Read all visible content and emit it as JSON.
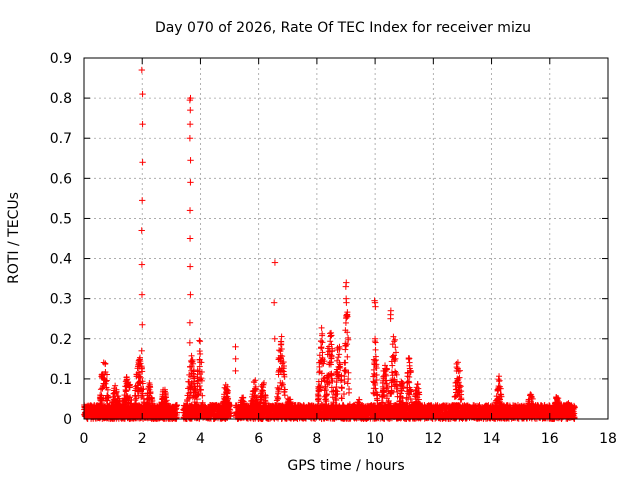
{
  "chart_data": {
    "type": "scatter",
    "title": "Day 070 of 2026, Rate Of TEC Index for receiver mizu",
    "xlabel": "GPS time / hours",
    "ylabel": "ROTI / TECUs",
    "xlim": [
      0,
      18
    ],
    "ylim": [
      0,
      0.9
    ],
    "xticks": [
      "0",
      "2",
      "4",
      "6",
      "8",
      "10",
      "12",
      "14",
      "16",
      "18"
    ],
    "yticks": [
      "0",
      "0.1",
      "0.2",
      "0.3",
      "0.4",
      "0.5",
      "0.6",
      "0.7",
      "0.8",
      "0.9"
    ],
    "grid": true,
    "marker": "+",
    "color": "#ff0000",
    "series": [
      {
        "name": "ROTI",
        "spikes": [
          {
            "x": 2.0,
            "values": [
              0.87,
              0.81,
              0.735,
              0.64,
              0.545,
              0.47,
              0.385,
              0.31,
              0.235,
              0.17
            ]
          },
          {
            "x": 3.65,
            "values": [
              0.8,
              0.795,
              0.77,
              0.735,
              0.7,
              0.645,
              0.59,
              0.52,
              0.45,
              0.38,
              0.31,
              0.24,
              0.19
            ]
          },
          {
            "x": 5.2,
            "values": [
              0.18,
              0.15,
              0.12
            ]
          },
          {
            "x": 6.55,
            "values": [
              0.39,
              0.29,
              0.2
            ]
          },
          {
            "x": 9.0,
            "values": [
              0.34,
              0.33,
              0.3,
              0.29
            ]
          },
          {
            "x": 10.0,
            "values": [
              0.295,
              0.29,
              0.28,
              0.2
            ]
          },
          {
            "x": 10.55,
            "values": [
              0.27,
              0.26,
              0.25
            ]
          }
        ],
        "clusters": [
          {
            "x_start": 0.5,
            "x_end": 0.9,
            "peak": 0.15
          },
          {
            "x_start": 0.9,
            "x_end": 1.3,
            "peak": 0.09
          },
          {
            "x_start": 1.3,
            "x_end": 1.7,
            "peak": 0.11
          },
          {
            "x_start": 1.7,
            "x_end": 2.1,
            "peak": 0.17
          },
          {
            "x_start": 2.1,
            "x_end": 2.4,
            "peak": 0.09
          },
          {
            "x_start": 2.6,
            "x_end": 2.9,
            "peak": 0.08
          },
          {
            "x_start": 3.5,
            "x_end": 3.9,
            "peak": 0.16
          },
          {
            "x_start": 3.85,
            "x_end": 4.1,
            "peak": 0.2
          },
          {
            "x_start": 4.7,
            "x_end": 5.05,
            "peak": 0.09
          },
          {
            "x_start": 5.3,
            "x_end": 5.6,
            "peak": 0.06
          },
          {
            "x_start": 5.7,
            "x_end": 6.0,
            "peak": 0.11
          },
          {
            "x_start": 6.0,
            "x_end": 6.3,
            "peak": 0.1
          },
          {
            "x_start": 6.6,
            "x_end": 6.95,
            "peak": 0.22
          },
          {
            "x_start": 6.9,
            "x_end": 7.2,
            "peak": 0.06
          },
          {
            "x_start": 8.0,
            "x_end": 8.35,
            "peak": 0.23
          },
          {
            "x_start": 8.3,
            "x_end": 8.6,
            "peak": 0.25
          },
          {
            "x_start": 8.6,
            "x_end": 8.9,
            "peak": 0.2
          },
          {
            "x_start": 8.9,
            "x_end": 9.15,
            "peak": 0.28
          },
          {
            "x_start": 9.3,
            "x_end": 9.6,
            "peak": 0.05
          },
          {
            "x_start": 9.9,
            "x_end": 10.1,
            "peak": 0.2
          },
          {
            "x_start": 10.2,
            "x_end": 10.5,
            "peak": 0.16
          },
          {
            "x_start": 10.5,
            "x_end": 10.8,
            "peak": 0.22
          },
          {
            "x_start": 10.8,
            "x_end": 11.05,
            "peak": 0.1
          },
          {
            "x_start": 11.05,
            "x_end": 11.3,
            "peak": 0.16
          },
          {
            "x_start": 11.3,
            "x_end": 11.6,
            "peak": 0.09
          },
          {
            "x_start": 12.7,
            "x_end": 13.0,
            "peak": 0.16
          },
          {
            "x_start": 14.1,
            "x_end": 14.4,
            "peak": 0.11
          },
          {
            "x_start": 15.2,
            "x_end": 15.5,
            "peak": 0.07
          },
          {
            "x_start": 16.1,
            "x_end": 16.4,
            "peak": 0.06
          },
          {
            "x_start": 16.4,
            "x_end": 16.85,
            "peak": 0.04
          }
        ],
        "baseline": {
          "x_start": 0.0,
          "x_end": 16.85,
          "max": 0.035,
          "gaps": [
            [
              3.2,
              3.4
            ],
            [
              5.0,
              5.2
            ]
          ]
        }
      }
    ]
  }
}
